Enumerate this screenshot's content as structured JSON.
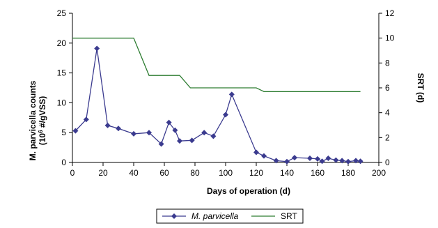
{
  "chart_data": {
    "type": "line",
    "title": "",
    "xlabel": "Days of operation (d)",
    "ylabel_left_line1": "M. parvicella counts",
    "ylabel_left_line2_prefix": "(10",
    "ylabel_left_line2_sup": "6",
    "ylabel_left_line2_suffix": " #/gVSS)",
    "ylabel_right": "SRT (d)",
    "xlim": [
      0,
      200
    ],
    "ylim_left": [
      0,
      25
    ],
    "ylim_right": [
      0,
      12
    ],
    "x_ticks": [
      "0",
      "20",
      "40",
      "60",
      "80",
      "100",
      "120",
      "140",
      "160",
      "180",
      "200"
    ],
    "y_left_ticks": [
      "0",
      "5",
      "10",
      "15",
      "20",
      "25"
    ],
    "y_right_ticks": [
      "0",
      "2",
      "4",
      "6",
      "8",
      "10",
      "12"
    ],
    "grid": false,
    "legend_position": "bottom-center",
    "series": [
      {
        "name": "M. parvicella",
        "axis": "left",
        "color": "#3b3b8f",
        "marker": "diamond",
        "x": [
          2,
          9,
          16,
          23,
          30,
          40,
          50,
          58,
          63,
          67,
          70,
          78,
          86,
          92,
          100,
          104,
          120,
          125,
          133,
          140,
          145,
          155,
          160,
          163,
          167,
          172,
          176,
          180,
          185,
          188
        ],
        "values": [
          5.3,
          7.2,
          19.1,
          6.2,
          5.7,
          4.8,
          5.0,
          3.1,
          6.7,
          5.4,
          3.6,
          3.7,
          5.0,
          4.4,
          8.0,
          11.4,
          1.7,
          1.1,
          0.3,
          0.15,
          0.8,
          0.7,
          0.6,
          0.2,
          0.7,
          0.4,
          0.3,
          0.15,
          0.3,
          0.2
        ]
      },
      {
        "name": "SRT",
        "axis": "right",
        "color": "#2e7d32",
        "marker": "none",
        "x": [
          0,
          40,
          50,
          70,
          77,
          120,
          125,
          188
        ],
        "values": [
          10,
          10,
          7,
          7,
          6,
          6,
          5.7,
          5.7
        ]
      }
    ]
  }
}
